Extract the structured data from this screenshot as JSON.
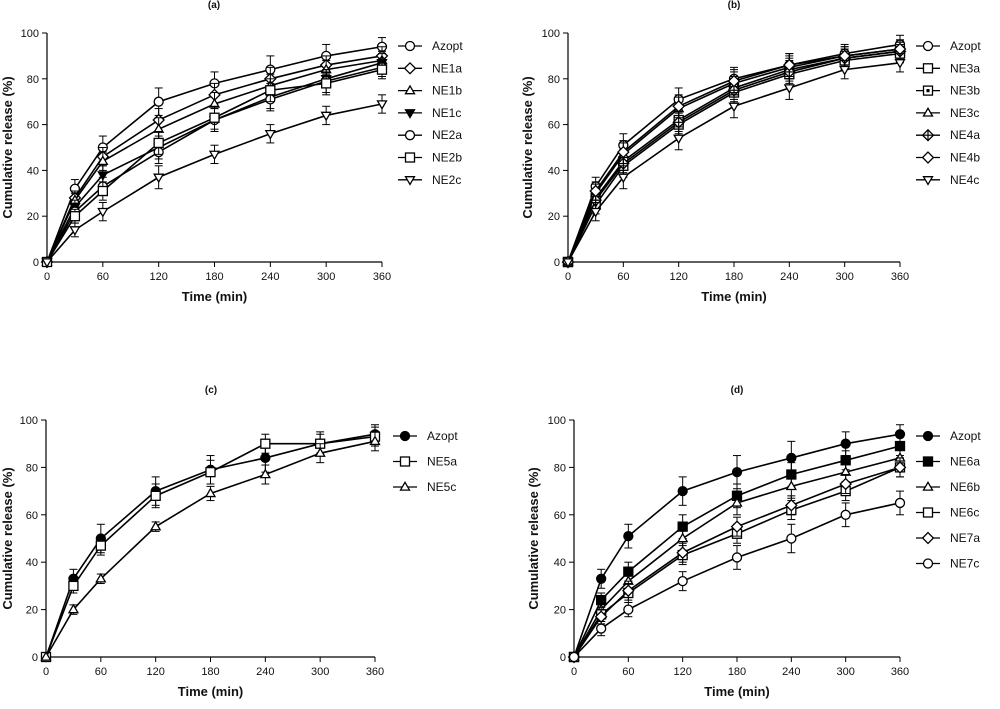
{
  "chart_data": [
    {
      "panel": "(a)",
      "type": "line",
      "title": "(a)",
      "xlabel": "Time (min)",
      "ylabel": "Cumulative release (%)",
      "xlim": [
        0,
        360
      ],
      "ylim": [
        0,
        100
      ],
      "xticks": [
        0,
        60,
        120,
        180,
        240,
        300,
        360
      ],
      "yticks": [
        0,
        20,
        40,
        60,
        80,
        100
      ],
      "x": [
        0,
        30,
        60,
        120,
        180,
        240,
        300,
        360
      ],
      "legend_position": "right",
      "series": [
        {
          "name": "Azopt",
          "marker": "circle-open",
          "values": [
            0,
            32,
            50,
            70,
            78,
            84,
            90,
            94
          ],
          "errors": [
            0,
            4,
            5,
            6,
            5,
            6,
            5,
            4
          ]
        },
        {
          "name": "NE1a",
          "marker": "diamond-open",
          "values": [
            0,
            28,
            46,
            62,
            73,
            80,
            86,
            90
          ],
          "errors": [
            0,
            3,
            4,
            5,
            5,
            5,
            4,
            4
          ]
        },
        {
          "name": "NE1b",
          "marker": "triangle-open",
          "values": [
            0,
            27,
            44,
            58,
            69,
            77,
            84,
            88
          ],
          "errors": [
            0,
            3,
            4,
            5,
            5,
            5,
            4,
            4
          ]
        },
        {
          "name": "NE1c",
          "marker": "triangle-down-filled",
          "values": [
            0,
            24,
            38,
            50,
            62,
            72,
            80,
            87
          ],
          "errors": [
            0,
            3,
            4,
            5,
            5,
            5,
            4,
            4
          ]
        },
        {
          "name": "NE2a",
          "marker": "circle-open",
          "values": [
            0,
            22,
            33,
            48,
            62,
            71,
            79,
            85
          ],
          "errors": [
            0,
            3,
            4,
            5,
            5,
            5,
            5,
            4
          ]
        },
        {
          "name": "NE2b",
          "marker": "square-open",
          "values": [
            0,
            20,
            31,
            52,
            63,
            75,
            78,
            84
          ],
          "errors": [
            0,
            3,
            4,
            5,
            5,
            5,
            5,
            4
          ]
        },
        {
          "name": "NE2c",
          "marker": "triangle-down-open",
          "values": [
            0,
            14,
            22,
            37,
            47,
            56,
            64,
            69
          ],
          "errors": [
            0,
            3,
            4,
            5,
            4,
            4,
            4,
            4
          ]
        }
      ]
    },
    {
      "panel": "(b)",
      "type": "line",
      "title": "(b)",
      "xlabel": "Time (min)",
      "ylabel": "Cumulative release (%)",
      "xlim": [
        0,
        360
      ],
      "ylim": [
        0,
        100
      ],
      "xticks": [
        0,
        60,
        120,
        180,
        240,
        300,
        360
      ],
      "yticks": [
        0,
        20,
        40,
        60,
        80,
        100
      ],
      "x": [
        0,
        30,
        60,
        120,
        180,
        240,
        300,
        360
      ],
      "legend_position": "right",
      "series": [
        {
          "name": "Azopt",
          "marker": "circle-open",
          "values": [
            0,
            33,
            51,
            71,
            80,
            86,
            91,
            95
          ],
          "errors": [
            0,
            4,
            5,
            5,
            5,
            5,
            4,
            4
          ]
        },
        {
          "name": "NE3a",
          "marker": "square-open",
          "values": [
            0,
            28,
            44,
            62,
            76,
            84,
            89,
            92
          ],
          "errors": [
            0,
            4,
            5,
            5,
            5,
            5,
            4,
            4
          ]
        },
        {
          "name": "NE3b",
          "marker": "square-dotted",
          "values": [
            0,
            25,
            42,
            60,
            74,
            82,
            88,
            91
          ],
          "errors": [
            0,
            4,
            5,
            5,
            5,
            5,
            4,
            4
          ]
        },
        {
          "name": "NE3c",
          "marker": "triangle-open",
          "values": [
            0,
            30,
            47,
            67,
            78,
            85,
            90,
            93
          ],
          "errors": [
            0,
            4,
            5,
            5,
            5,
            5,
            4,
            4
          ]
        },
        {
          "name": "NE4a",
          "marker": "diamond-cross",
          "values": [
            0,
            27,
            43,
            61,
            75,
            83,
            89,
            92
          ],
          "errors": [
            0,
            4,
            5,
            5,
            5,
            5,
            4,
            4
          ]
        },
        {
          "name": "NE4b",
          "marker": "diamond-open",
          "values": [
            0,
            31,
            48,
            68,
            79,
            86,
            90,
            93
          ],
          "errors": [
            0,
            4,
            5,
            5,
            5,
            5,
            4,
            4
          ]
        },
        {
          "name": "NE4c",
          "marker": "triangle-down-open",
          "values": [
            0,
            22,
            37,
            54,
            68,
            76,
            84,
            87
          ],
          "errors": [
            0,
            4,
            5,
            5,
            5,
            5,
            4,
            4
          ]
        }
      ]
    },
    {
      "panel": "(c)",
      "type": "line",
      "title": "(c)",
      "xlabel": "Time (min)",
      "ylabel": "Cumulative release (%)",
      "xlim": [
        0,
        360
      ],
      "ylim": [
        0,
        100
      ],
      "xticks": [
        0,
        60,
        120,
        180,
        240,
        300,
        360
      ],
      "yticks": [
        0,
        20,
        40,
        60,
        80,
        100
      ],
      "x": [
        0,
        30,
        60,
        120,
        180,
        240,
        300,
        360
      ],
      "legend_position": "right",
      "series": [
        {
          "name": "Azopt",
          "marker": "circle-filled",
          "values": [
            0,
            33,
            50,
            70,
            79,
            84,
            90,
            94
          ],
          "errors": [
            0,
            4,
            6,
            6,
            6,
            6,
            5,
            4
          ]
        },
        {
          "name": "NE5a",
          "marker": "square-open",
          "values": [
            0,
            30,
            47,
            68,
            78,
            90,
            90,
            93
          ],
          "errors": [
            0,
            3,
            4,
            5,
            5,
            4,
            4,
            4
          ]
        },
        {
          "name": "NE5c",
          "marker": "triangle-open",
          "values": [
            0,
            20,
            33,
            55,
            69,
            77,
            86,
            91
          ],
          "errors": [
            0,
            2,
            2,
            2,
            3,
            4,
            4,
            4
          ]
        }
      ]
    },
    {
      "panel": "(d)",
      "type": "line",
      "title": "(d)",
      "xlabel": "Time (min)",
      "ylabel": "Cumulative release (%)",
      "xlim": [
        0,
        360
      ],
      "ylim": [
        0,
        100
      ],
      "xticks": [
        0,
        60,
        120,
        180,
        240,
        300,
        360
      ],
      "yticks": [
        0,
        20,
        40,
        60,
        80,
        100
      ],
      "x": [
        0,
        30,
        60,
        120,
        180,
        240,
        300,
        360
      ],
      "legend_position": "right",
      "series": [
        {
          "name": "Azopt",
          "marker": "circle-filled",
          "values": [
            0,
            33,
            51,
            70,
            78,
            84,
            90,
            94
          ],
          "errors": [
            0,
            4,
            5,
            6,
            7,
            7,
            5,
            4
          ]
        },
        {
          "name": "NE6a",
          "marker": "square-filled",
          "values": [
            0,
            24,
            36,
            55,
            68,
            77,
            83,
            89
          ],
          "errors": [
            0,
            3,
            4,
            5,
            5,
            5,
            4,
            4
          ]
        },
        {
          "name": "NE6b",
          "marker": "triangle-open",
          "values": [
            0,
            20,
            32,
            50,
            65,
            72,
            78,
            84
          ],
          "errors": [
            0,
            3,
            4,
            5,
            5,
            5,
            4,
            4
          ]
        },
        {
          "name": "NE6c",
          "marker": "square-open",
          "values": [
            0,
            18,
            27,
            43,
            52,
            62,
            70,
            80
          ],
          "errors": [
            0,
            3,
            4,
            4,
            4,
            4,
            4,
            4
          ]
        },
        {
          "name": "NE7a",
          "marker": "diamond-open",
          "values": [
            0,
            17,
            28,
            44,
            55,
            64,
            73,
            80
          ],
          "errors": [
            0,
            3,
            4,
            4,
            4,
            4,
            4,
            4
          ]
        },
        {
          "name": "NE7c",
          "marker": "circle-open",
          "values": [
            0,
            12,
            20,
            32,
            42,
            50,
            60,
            65
          ],
          "errors": [
            0,
            3,
            3,
            4,
            5,
            6,
            5,
            5
          ]
        }
      ]
    }
  ]
}
